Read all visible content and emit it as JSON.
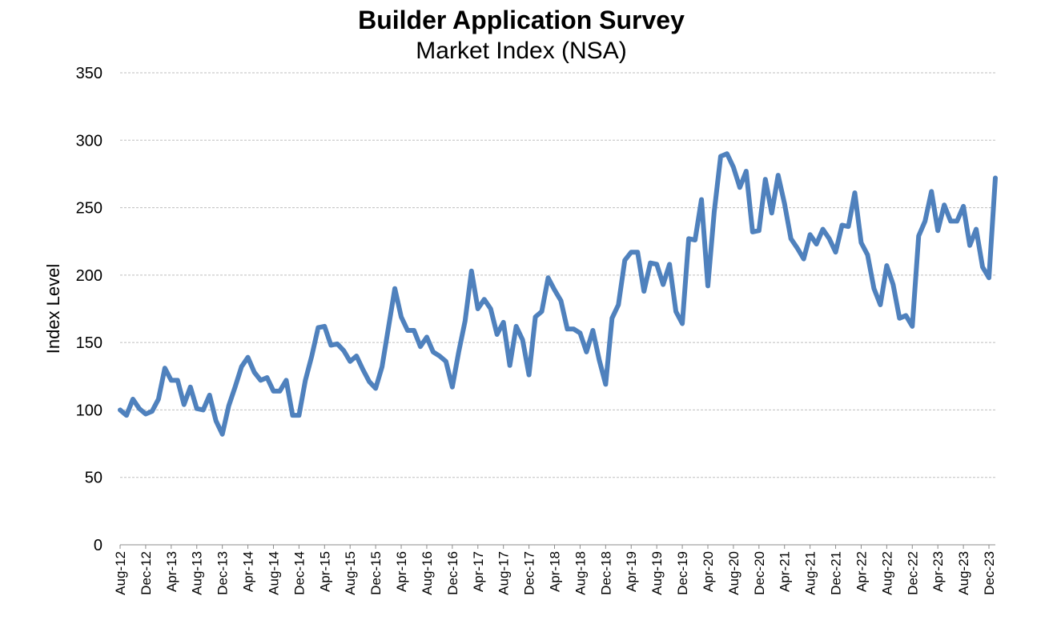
{
  "chart_data": {
    "type": "line",
    "title": "Builder Application Survey",
    "subtitle": "Market Index (NSA)",
    "ylabel": "Index Level",
    "xlabel": "",
    "ylim": [
      0,
      350
    ],
    "yticks": [
      0,
      50,
      100,
      150,
      200,
      250,
      300,
      350
    ],
    "grid": true,
    "legend": "none",
    "x_tick_labels": [
      "Aug-12",
      "Dec-12",
      "Apr-13",
      "Aug-13",
      "Dec-13",
      "Apr-14",
      "Aug-14",
      "Dec-14",
      "Apr-15",
      "Aug-15",
      "Dec-15",
      "Apr-16",
      "Aug-16",
      "Dec-16",
      "Apr-17",
      "Aug-17",
      "Dec-17",
      "Apr-18",
      "Aug-18",
      "Dec-18",
      "Apr-19",
      "Aug-19",
      "Dec-19",
      "Apr-20",
      "Aug-20",
      "Dec-20",
      "Apr-21",
      "Aug-21",
      "Dec-21",
      "Apr-22",
      "Aug-22",
      "Dec-22",
      "Apr-23",
      "Aug-23",
      "Dec-23"
    ],
    "x_start": "Aug-12",
    "series": [
      {
        "color": "#4f81bd",
        "values": [
          100,
          96,
          108,
          101,
          97,
          99,
          108,
          131,
          122,
          122,
          104,
          117,
          101,
          100,
          111,
          92,
          82,
          103,
          117,
          132,
          139,
          128,
          122,
          124,
          114,
          114,
          122,
          96,
          96,
          122,
          140,
          161,
          162,
          148,
          149,
          144,
          136,
          140,
          130,
          121,
          116,
          132,
          161,
          190,
          169,
          159,
          159,
          147,
          154,
          143,
          140,
          136,
          117,
          143,
          166,
          203,
          175,
          182,
          175,
          156,
          165,
          133,
          162,
          152,
          126,
          169,
          173,
          198,
          189,
          181,
          160,
          160,
          157,
          143,
          159,
          137,
          119,
          168,
          178,
          211,
          217,
          217,
          188,
          209,
          208,
          193,
          208,
          173,
          164,
          227,
          226,
          256,
          192,
          247,
          288,
          290,
          280,
          265,
          277,
          232,
          233,
          271,
          246,
          274,
          253,
          227,
          220,
          212,
          230,
          223,
          234,
          227,
          217,
          237,
          236,
          261,
          224,
          215,
          190,
          178,
          207,
          193,
          168,
          170,
          162,
          229,
          240,
          262,
          233,
          252,
          240,
          240,
          251,
          222,
          234,
          206,
          198,
          272
        ]
      }
    ]
  },
  "colors": {
    "line": "#4f81bd",
    "gridline": "#bfbfbf",
    "axis": "#8c8c8c",
    "background": "#ffffff"
  }
}
